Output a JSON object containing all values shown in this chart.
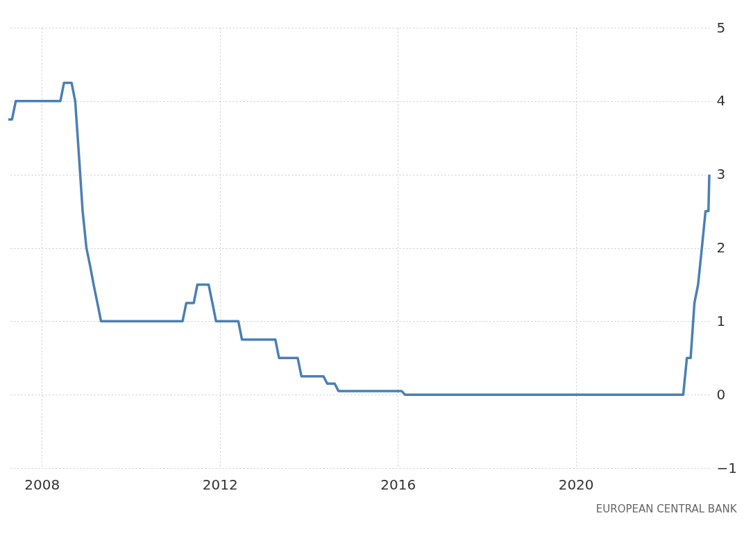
{
  "chart_data": {
    "type": "line",
    "annotations": [
      "EUROPEAN CENTRAL BANK"
    ],
    "x": [
      "2007-04",
      "2007-05",
      "2007-06",
      "2008-06",
      "2008-07",
      "2008-09",
      "2008-10",
      "2008-11",
      "2008-12",
      "2009-01",
      "2009-02",
      "2009-03",
      "2009-04",
      "2009-05",
      "2011-03",
      "2011-04",
      "2011-06",
      "2011-07",
      "2011-10",
      "2011-11",
      "2011-12",
      "2012-06",
      "2012-07",
      "2013-04",
      "2013-05",
      "2013-10",
      "2013-11",
      "2014-05",
      "2014-06",
      "2014-08",
      "2014-09",
      "2016-02",
      "2016-03",
      "2022-06",
      "2022-07",
      "2022-08",
      "2022-09",
      "2022-10",
      "2022-11",
      "2022-12",
      "2022-12-25",
      "2023-01"
    ],
    "series": [
      {
        "color": "#4a7fb5",
        "values": [
          3.75,
          3.75,
          4.0,
          4.0,
          4.25,
          4.25,
          4.0,
          3.25,
          2.5,
          2.0,
          1.75,
          1.5,
          1.25,
          1.0,
          1.0,
          1.25,
          1.25,
          1.5,
          1.5,
          1.25,
          1.0,
          1.0,
          0.75,
          0.75,
          0.5,
          0.5,
          0.25,
          0.25,
          0.15,
          0.15,
          0.05,
          0.05,
          0,
          0,
          0.5,
          0.5,
          1.25,
          1.5,
          2.0,
          2.5,
          2.5,
          3.0
        ]
      }
    ],
    "xlim": [
      "2007-04",
      "2023-01"
    ],
    "xticks": [
      "2008",
      "2012",
      "2016",
      "2020"
    ],
    "ylim": [
      -1,
      5
    ],
    "yticks": [
      -1,
      0,
      1,
      2,
      3,
      4,
      5
    ],
    "grid": true
  }
}
